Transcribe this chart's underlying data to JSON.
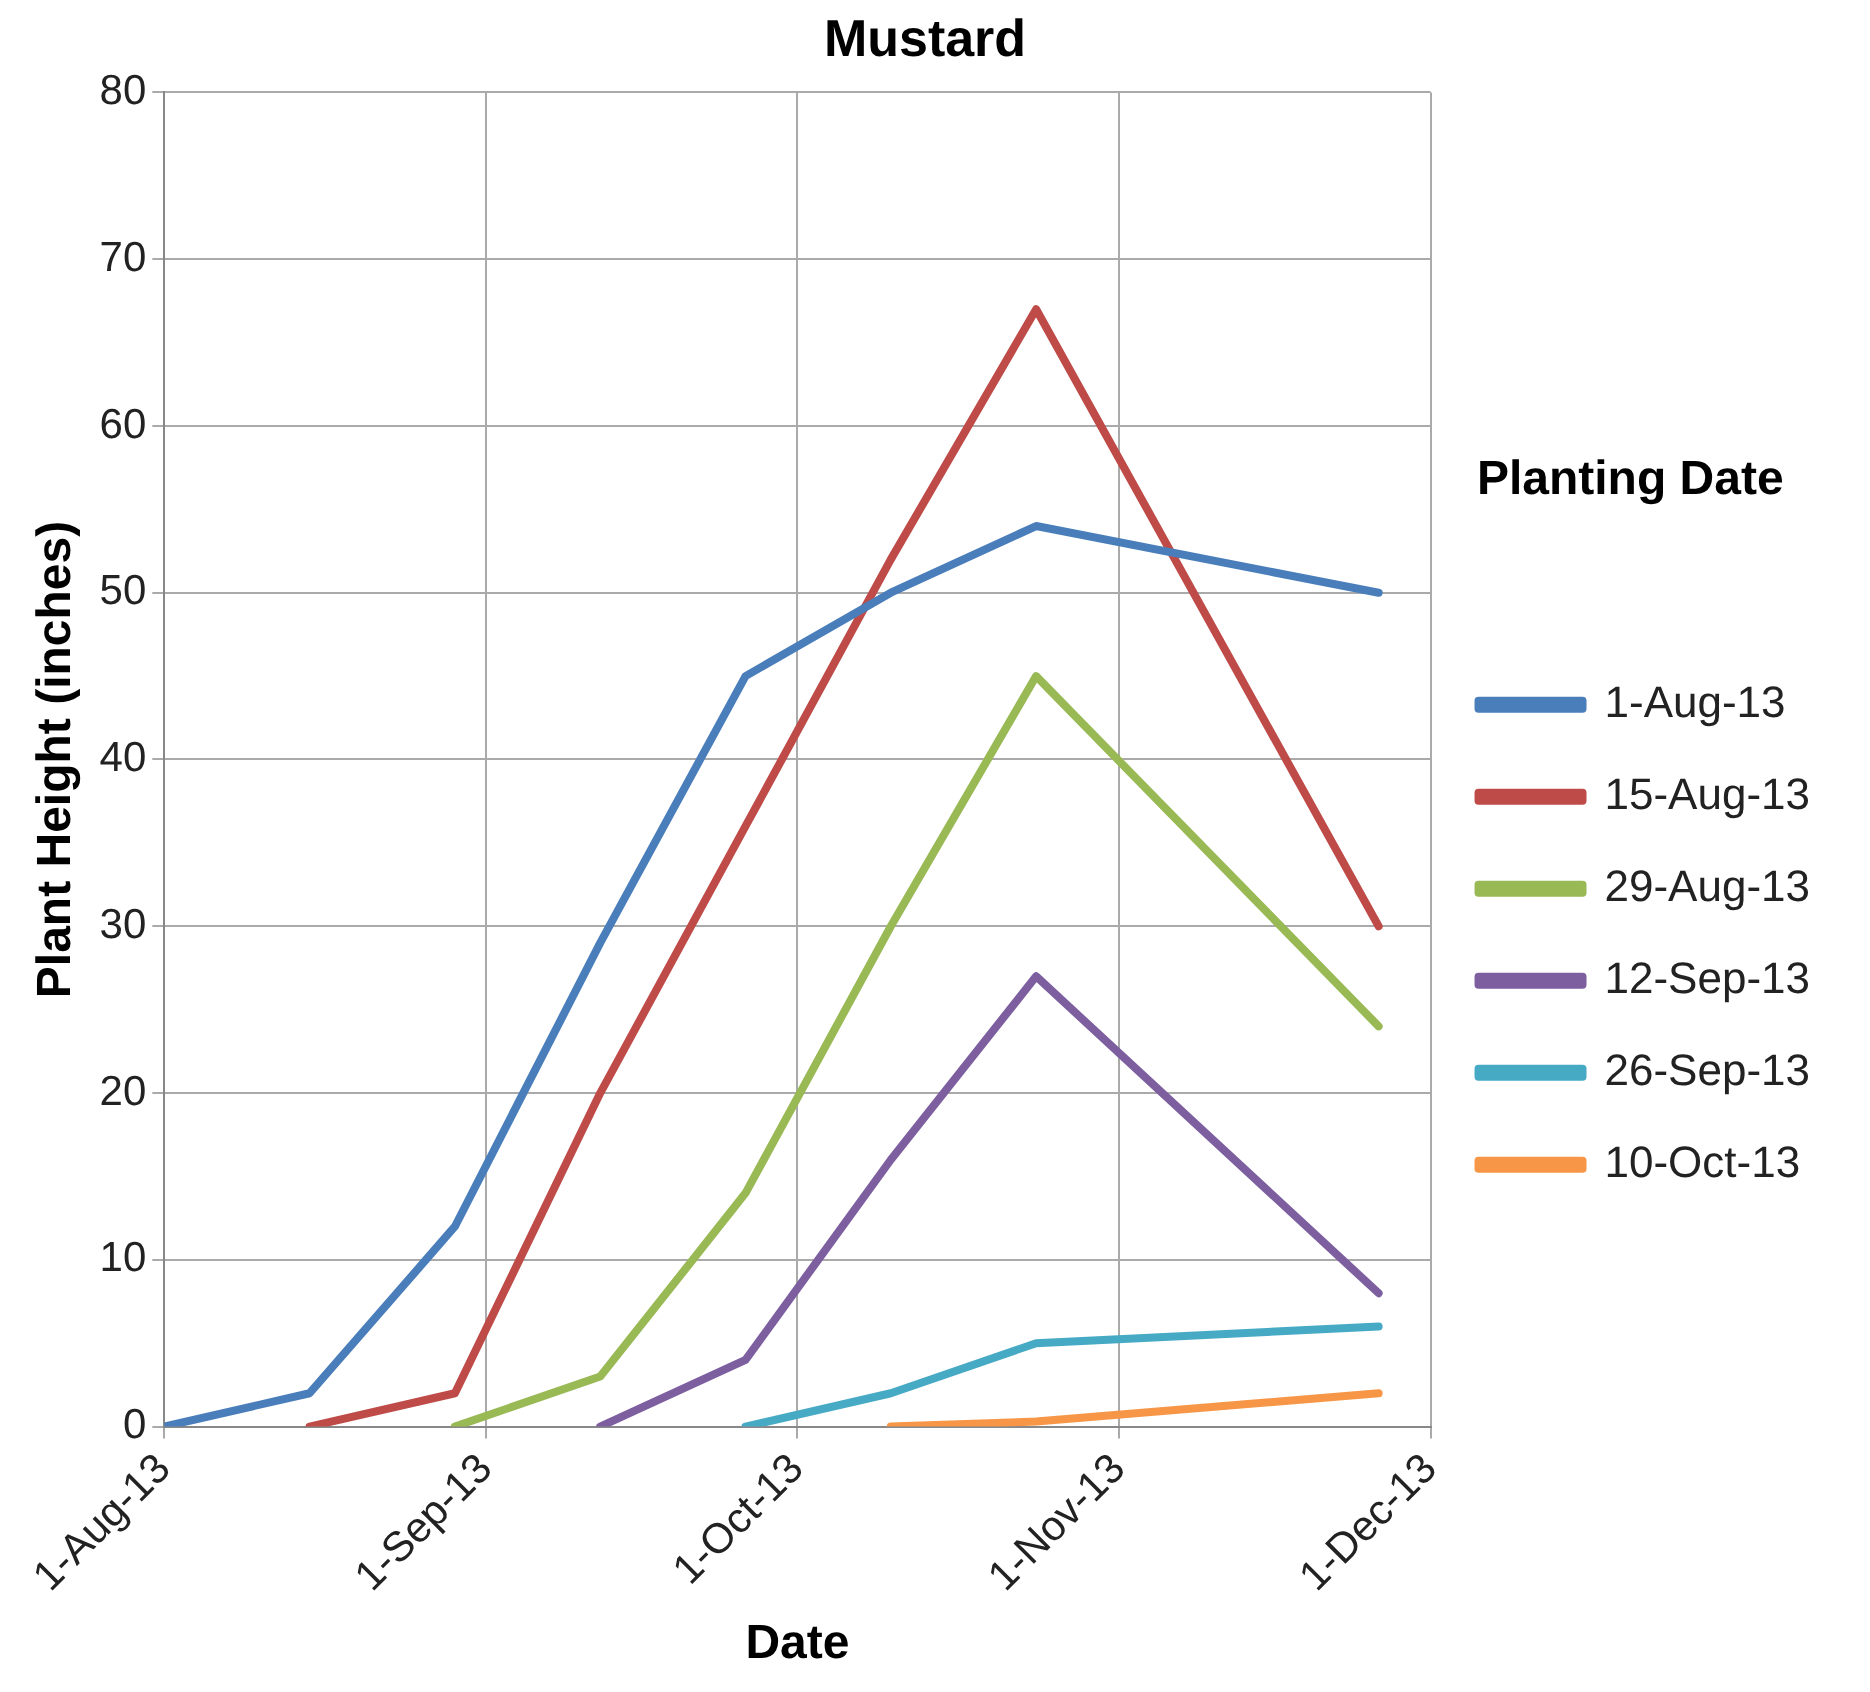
{
  "chart_data": {
    "type": "line",
    "title": "Mustard",
    "xlabel": "Date",
    "ylabel": "Plant Height (inches)",
    "legend_title": "Planting Date",
    "legend": "right",
    "grid": true,
    "marker": "none",
    "line_style": "solid",
    "xlim": [
      "2013-08-01",
      "2013-12-01"
    ],
    "xticks": [
      {
        "value": "2013-08-01",
        "label": "1-Aug-13"
      },
      {
        "value": "2013-09-01",
        "label": "1-Sep-13"
      },
      {
        "value": "2013-10-01",
        "label": "1-Oct-13"
      },
      {
        "value": "2013-11-01",
        "label": "1-Nov-13"
      },
      {
        "value": "2013-12-01",
        "label": "1-Dec-13"
      }
    ],
    "ylim": [
      0,
      80
    ],
    "yticks": [
      0,
      10,
      20,
      30,
      40,
      50,
      60,
      70,
      80
    ],
    "series": [
      {
        "name": "1-Aug-13",
        "color": "#4a7ebb",
        "x": [
          "2013-08-01",
          "2013-08-15",
          "2013-08-29",
          "2013-09-12",
          "2013-09-26",
          "2013-10-10",
          "2013-10-24",
          "2013-11-26"
        ],
        "values": [
          0,
          2,
          12,
          29,
          45,
          50,
          54,
          50
        ]
      },
      {
        "name": "15-Aug-13",
        "color": "#be4b48",
        "x": [
          "2013-08-15",
          "2013-08-29",
          "2013-09-12",
          "2013-09-26",
          "2013-10-10",
          "2013-10-24",
          "2013-11-26"
        ],
        "values": [
          0,
          2,
          20,
          36,
          52,
          67,
          30
        ]
      },
      {
        "name": "29-Aug-13",
        "color": "#98b954",
        "x": [
          "2013-08-29",
          "2013-09-12",
          "2013-09-26",
          "2013-10-10",
          "2013-10-24",
          "2013-11-26"
        ],
        "values": [
          0,
          3,
          14,
          30,
          45,
          24
        ]
      },
      {
        "name": "12-Sep-13",
        "color": "#7d5fa0",
        "x": [
          "2013-09-12",
          "2013-09-26",
          "2013-10-10",
          "2013-10-24",
          "2013-11-26"
        ],
        "values": [
          0,
          4,
          16,
          27,
          8
        ]
      },
      {
        "name": "26-Sep-13",
        "color": "#46aac5",
        "x": [
          "2013-09-26",
          "2013-10-10",
          "2013-10-24",
          "2013-11-26"
        ],
        "values": [
          0,
          2,
          5,
          6
        ]
      },
      {
        "name": "10-Oct-13",
        "color": "#f79646",
        "x": [
          "2013-10-10",
          "2013-10-24",
          "2013-11-26"
        ],
        "values": [
          0,
          0.3,
          2
        ]
      }
    ]
  }
}
